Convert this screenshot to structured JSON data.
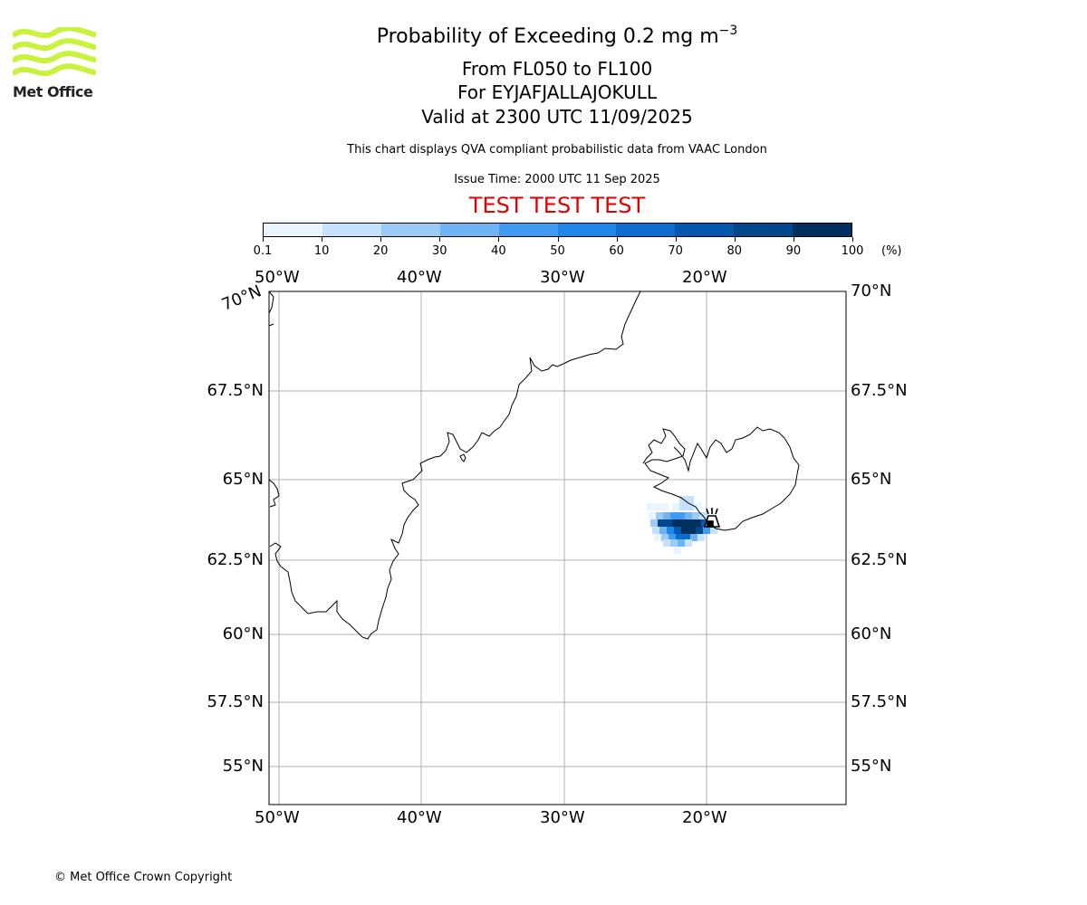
{
  "header": {
    "title_main": "Probability of Exceeding 0.2 mg m",
    "title_exponent": "−3",
    "flight_levels": "From FL050 to FL100",
    "volcano": "For EYJAFJALLAJOKULL",
    "valid_time": "Valid at 2300 UTC 11/09/2025",
    "description": "This chart displays QVA compliant probabilistic data from VAAC London",
    "issue_time": "Issue Time: 2000 UTC 11 Sep 2025",
    "test_banner": "TEST TEST TEST"
  },
  "logo": {
    "text": "Met Office",
    "color": "#c8f23c"
  },
  "colorbar": {
    "ticks": [
      "0.1",
      "10",
      "20",
      "30",
      "40",
      "50",
      "60",
      "70",
      "80",
      "90",
      "100"
    ],
    "unit": "(%)",
    "colors": [
      "#eaf4ff",
      "#c6e1fb",
      "#9ccbf6",
      "#6fb3f2",
      "#3f9cf0",
      "#1f87ea",
      "#0d6cd0",
      "#0358ae",
      "#02478c",
      "#012f5e"
    ]
  },
  "map": {
    "lon_labels": [
      "50°W",
      "40°W",
      "30°W",
      "20°W"
    ],
    "lat_labels": [
      "70°N",
      "67.5°N",
      "65°N",
      "62.5°N",
      "60°N",
      "57.5°N",
      "55°N"
    ],
    "marker": "volcano-icon"
  },
  "footer": {
    "copyright": "© Met Office Crown Copyright"
  }
}
